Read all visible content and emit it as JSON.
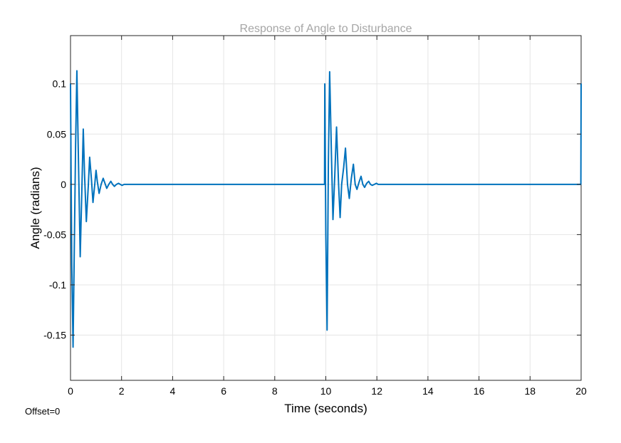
{
  "chart_data": {
    "type": "line",
    "title": "Response of Angle to Disturbance",
    "xlabel": "Time (seconds)",
    "ylabel": "Angle (radians)",
    "xlim": [
      0,
      20
    ],
    "ylim": [
      -0.195,
      0.148
    ],
    "xticks": [
      0,
      2,
      4,
      6,
      8,
      10,
      12,
      14,
      16,
      18,
      20
    ],
    "xtick_labels": [
      "0",
      "2",
      "4",
      "6",
      "8",
      "10",
      "12",
      "14",
      "16",
      "18",
      "20"
    ],
    "yticks": [
      0.1,
      0.05,
      0,
      -0.05,
      -0.1,
      -0.15
    ],
    "ytick_labels": [
      "0.1",
      "0.05",
      "0",
      "-0.05",
      "-0.1",
      "-0.15"
    ],
    "grid": true,
    "series": [
      {
        "color": "#0072bd",
        "x": [
          0,
          0.02,
          0.05,
          0.1,
          0.2,
          0.25,
          0.3,
          0.38,
          0.45,
          0.5,
          0.55,
          0.62,
          0.7,
          0.75,
          0.82,
          0.88,
          0.95,
          1.0,
          1.05,
          1.12,
          1.2,
          1.28,
          1.35,
          1.42,
          1.5,
          1.58,
          1.65,
          1.72,
          1.8,
          1.88,
          1.95,
          2.02,
          2.1,
          2.2,
          2.4,
          9.95,
          9.96,
          10.0,
          10.05,
          10.1,
          10.15,
          10.22,
          10.28,
          10.35,
          10.42,
          10.5,
          10.56,
          10.62,
          10.7,
          10.77,
          10.85,
          10.92,
          11.0,
          11.08,
          11.15,
          11.22,
          11.3,
          11.38,
          11.45,
          11.52,
          11.6,
          11.68,
          11.75,
          11.82,
          11.9,
          11.98,
          12.05,
          12.15,
          12.3,
          19.99,
          20.0
        ],
        "y": [
          0.1,
          0.02,
          -0.08,
          -0.162,
          0.04,
          0.113,
          0.04,
          -0.072,
          0.0,
          0.055,
          0.01,
          -0.037,
          0.0,
          0.027,
          0.005,
          -0.018,
          0.0,
          0.014,
          0.003,
          -0.009,
          0.0,
          0.006,
          0.001,
          -0.004,
          0.0,
          0.003,
          0.0,
          -0.002,
          0.0,
          0.001,
          0.0,
          -0.001,
          0.0,
          0.0,
          0.0,
          0.0,
          0.1,
          -0.05,
          -0.145,
          0.02,
          0.112,
          0.03,
          -0.035,
          0.008,
          0.057,
          0.0,
          -0.033,
          0.0,
          0.017,
          0.036,
          0.0,
          -0.014,
          0.006,
          0.02,
          0.0,
          -0.005,
          0.002,
          0.008,
          0.0,
          -0.003,
          0.001,
          0.003,
          0.0,
          -0.001,
          0.0,
          0.001,
          0.0,
          0.0,
          0.0,
          0.0,
          0.1
        ]
      }
    ],
    "footer_note": "Offset=0"
  },
  "colors": {
    "line": "#0072bd",
    "grid": "#e5e5e5",
    "title": "#a6a6a6",
    "axes": "#262626"
  }
}
